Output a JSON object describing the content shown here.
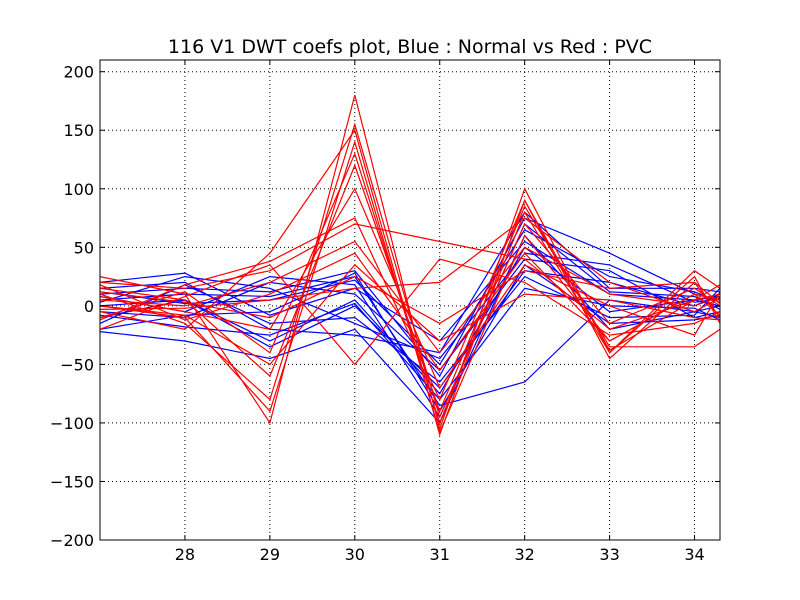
{
  "chart_data": {
    "type": "line",
    "title": "116 V1 DWT coefs plot, Blue : Normal vs Red : PVC",
    "xlabel": "",
    "ylabel": "",
    "xlim": [
      27,
      34.3
    ],
    "ylim": [
      -200,
      210
    ],
    "xticks": [
      28,
      29,
      30,
      31,
      32,
      33,
      34
    ],
    "xtick_labels": [
      "28",
      "29",
      "30",
      "31",
      "32",
      "33",
      "34"
    ],
    "yticks": [
      -200,
      -150,
      -100,
      -50,
      0,
      50,
      100,
      150,
      200
    ],
    "ytick_labels": [
      "−200",
      "−150",
      "−100",
      "−50",
      "0",
      "50",
      "100",
      "150",
      "200"
    ],
    "grid": true,
    "grid_style": "dotted",
    "x": [
      27,
      28,
      29,
      30,
      31,
      32,
      33,
      34,
      34.3
    ],
    "series": [
      {
        "color": "#0000ff",
        "values": [
          20,
          28,
          -8,
          15,
          -30,
          55,
          10,
          5,
          0
        ]
      },
      {
        "color": "#0000ff",
        "values": [
          -22,
          -30,
          -45,
          -20,
          -100,
          60,
          -20,
          -5,
          -10
        ]
      },
      {
        "color": "#0000ff",
        "values": [
          10,
          15,
          12,
          30,
          -60,
          75,
          45,
          10,
          5
        ]
      },
      {
        "color": "#0000ff",
        "values": [
          -10,
          5,
          -35,
          0,
          -70,
          30,
          20,
          0,
          10
        ]
      },
      {
        "color": "#0000ff",
        "values": [
          5,
          10,
          8,
          25,
          -85,
          -65,
          5,
          -5,
          0
        ]
      },
      {
        "color": "#0000ff",
        "values": [
          15,
          20,
          -20,
          -25,
          -40,
          80,
          15,
          15,
          12
        ]
      },
      {
        "color": "#0000ff",
        "values": [
          -5,
          -10,
          20,
          10,
          -55,
          40,
          30,
          -10,
          -5
        ]
      },
      {
        "color": "#0000ff",
        "values": [
          0,
          5,
          -30,
          5,
          -75,
          50,
          -5,
          5,
          8
        ]
      },
      {
        "color": "#0000ff",
        "values": [
          8,
          -5,
          25,
          18,
          -95,
          70,
          12,
          8,
          -3
        ]
      },
      {
        "color": "#0000ff",
        "values": [
          -15,
          18,
          -15,
          -10,
          -65,
          25,
          -10,
          -8,
          15
        ]
      },
      {
        "color": "#0000ff",
        "values": [
          12,
          2,
          5,
          22,
          -50,
          65,
          25,
          12,
          3
        ]
      },
      {
        "color": "#0000ff",
        "values": [
          -8,
          -18,
          -25,
          2,
          -80,
          15,
          0,
          -2,
          -12
        ]
      },
      {
        "color": "#0000ff",
        "values": [
          3,
          25,
          15,
          -15,
          -45,
          45,
          35,
          3,
          6
        ]
      },
      {
        "color": "#0000ff",
        "values": [
          -20,
          -8,
          -5,
          28,
          -90,
          35,
          -15,
          -12,
          -8
        ]
      },
      {
        "color": "#ff0000",
        "values": [
          25,
          10,
          -100,
          180,
          -105,
          100,
          -40,
          30,
          15
        ]
      },
      {
        "color": "#ff0000",
        "values": [
          -5,
          -20,
          45,
          150,
          -110,
          90,
          -45,
          20,
          -10
        ]
      },
      {
        "color": "#ff0000",
        "values": [
          15,
          5,
          -60,
          120,
          -90,
          85,
          -35,
          -35,
          -20
        ]
      },
      {
        "color": "#ff0000",
        "values": [
          0,
          -10,
          -90,
          140,
          -108,
          60,
          -30,
          10,
          5
        ]
      },
      {
        "color": "#ff0000",
        "values": [
          20,
          15,
          30,
          70,
          55,
          40,
          -20,
          5,
          10
        ]
      },
      {
        "color": "#ff0000",
        "values": [
          -20,
          8,
          35,
          -50,
          40,
          20,
          -25,
          -15,
          -5
        ]
      },
      {
        "color": "#ff0000",
        "values": [
          10,
          -15,
          -80,
          155,
          -95,
          70,
          -15,
          15,
          0
        ]
      },
      {
        "color": "#ff0000",
        "values": [
          5,
          0,
          20,
          55,
          -40,
          50,
          10,
          0,
          8
        ]
      },
      {
        "color": "#ff0000",
        "values": [
          -10,
          12,
          -40,
          130,
          -100,
          80,
          -40,
          25,
          -15
        ]
      },
      {
        "color": "#ff0000",
        "values": [
          8,
          -5,
          -20,
          100,
          -70,
          35,
          0,
          -25,
          12
        ]
      },
      {
        "color": "#ff0000",
        "values": [
          18,
          -12,
          10,
          45,
          -55,
          45,
          -30,
          10,
          -8
        ]
      },
      {
        "color": "#ff0000",
        "values": [
          -12,
          18,
          38,
          75,
          -80,
          90,
          -38,
          5,
          18
        ]
      },
      {
        "color": "#ff0000",
        "values": [
          0,
          -8,
          -50,
          35,
          -30,
          10,
          5,
          -10,
          -12
        ]
      },
      {
        "color": "#ff0000",
        "values": [
          12,
          3,
          -10,
          25,
          -15,
          30,
          15,
          20,
          2
        ]
      },
      {
        "color": "#ff0000",
        "values": [
          -3,
          -2,
          5,
          15,
          20,
          75,
          20,
          -5,
          7
        ]
      }
    ]
  }
}
